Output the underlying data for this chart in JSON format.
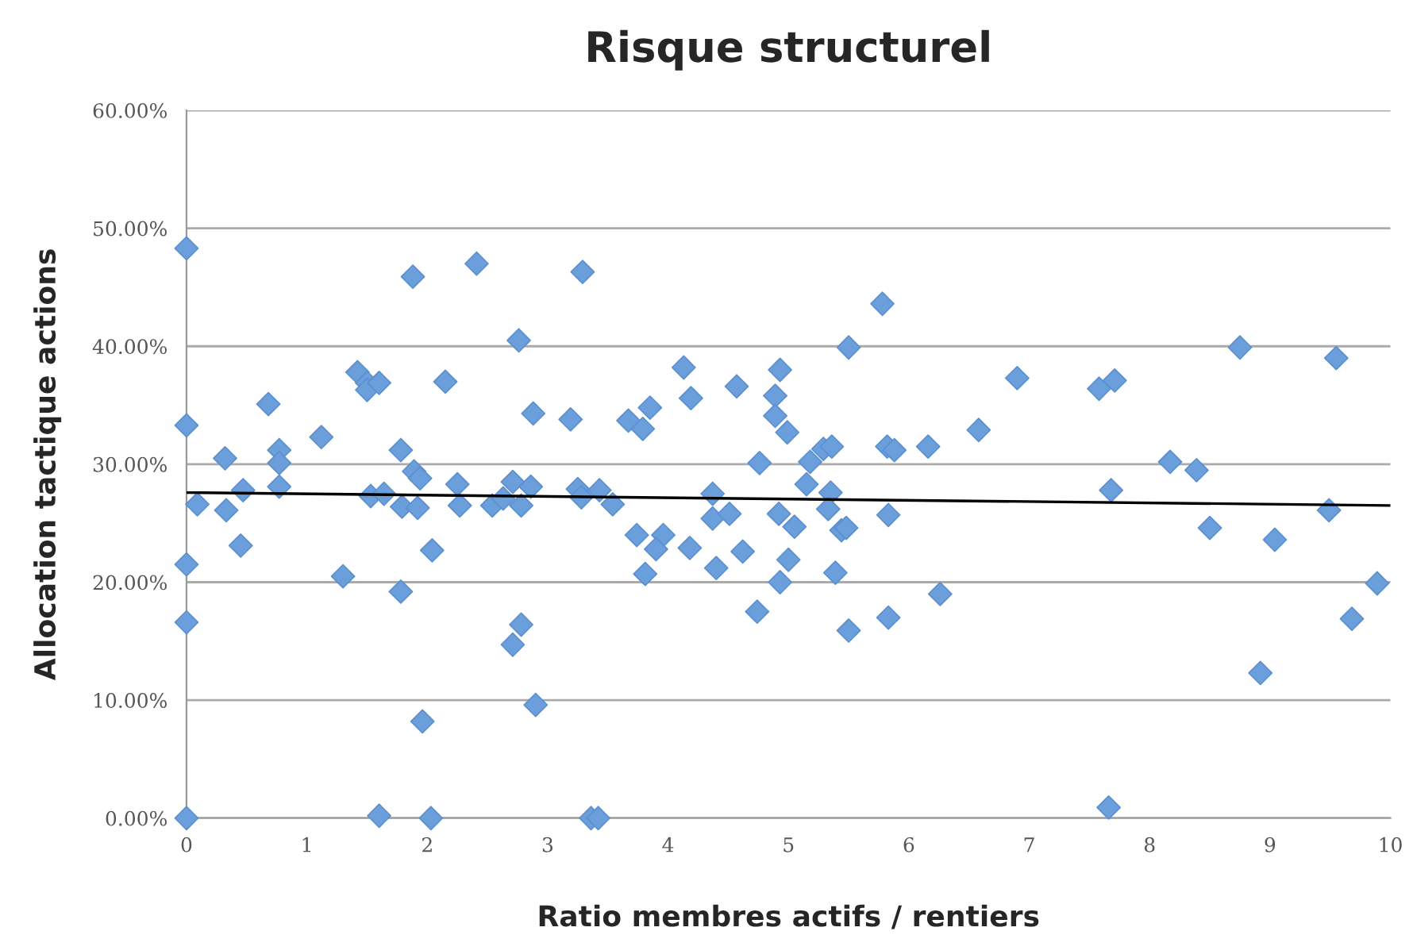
{
  "chart_data": {
    "type": "scatter",
    "title": "Risque structurel",
    "xlabel": "Ratio membres actifs / rentiers",
    "ylabel": "Allocation tactique actions",
    "xlim": [
      0,
      10
    ],
    "xticks": [
      0,
      1,
      2,
      3,
      4,
      5,
      6,
      7,
      8,
      9,
      10
    ],
    "ylim": [
      0,
      60
    ],
    "yticks": [
      {
        "value": 0,
        "label": "0.00%"
      },
      {
        "value": 10,
        "label": "10.00%"
      },
      {
        "value": 20,
        "label": "20.00%"
      },
      {
        "value": 30,
        "label": "30.00%"
      },
      {
        "value": 40,
        "label": "40.00%"
      },
      {
        "value": 50,
        "label": "50.00%"
      },
      {
        "value": 60,
        "label": "60.00%"
      }
    ],
    "grid": "y",
    "series": [
      {
        "marker": "diamond",
        "color": "#6a9fdc",
        "x": [
          0,
          0,
          0,
          0,
          0,
          0.09,
          0.32,
          0.33,
          0.45,
          0.47,
          0.68,
          0.77,
          0.77,
          0.77,
          1.12,
          1.3,
          1.42,
          1.5,
          1.5,
          1.6,
          1.53,
          1.64,
          1.6,
          1.78,
          1.79,
          1.78,
          1.88,
          1.89,
          1.94,
          1.92,
          1.96,
          2.04,
          2.03,
          2.15,
          2.25,
          2.27,
          2.41,
          2.54,
          2.63,
          2.71,
          2.71,
          2.76,
          2.78,
          2.78,
          2.86,
          2.88,
          2.9,
          3.19,
          3.29,
          3.25,
          3.28,
          3.43,
          3.54,
          3.36,
          3.42,
          3.67,
          3.79,
          3.85,
          3.74,
          3.96,
          3.9,
          3.81,
          4.13,
          4.19,
          4.18,
          4.37,
          4.37,
          4.51,
          4.4,
          4.57,
          4.62,
          4.74,
          4.76,
          4.93,
          4.89,
          4.89,
          4.99,
          4.92,
          5.05,
          5.0,
          4.93,
          5.18,
          5.15,
          5.29,
          5.36,
          5.35,
          5.33,
          5.44,
          5.48,
          5.39,
          5.5,
          5.5,
          5.78,
          5.82,
          5.88,
          5.83,
          5.83,
          6.16,
          6.26,
          6.58,
          6.9,
          7.58,
          7.71,
          7.68,
          7.66,
          8.17,
          8.39,
          8.5,
          8.75,
          8.92,
          9.04,
          9.55,
          9.49,
          9.68,
          9.89
        ],
        "values": [
          48.3,
          33.3,
          21.5,
          16.6,
          0,
          26.6,
          30.5,
          26.1,
          23.1,
          27.8,
          35.1,
          31.2,
          30.1,
          28.1,
          32.3,
          20.5,
          37.8,
          36.9,
          36.3,
          36.9,
          27.3,
          27.5,
          0.2,
          31.2,
          26.4,
          19.2,
          45.9,
          29.4,
          28.8,
          26.3,
          8.2,
          22.7,
          0,
          37.0,
          28.3,
          26.5,
          47.0,
          26.5,
          27.1,
          28.5,
          14.7,
          40.5,
          26.5,
          16.4,
          28.1,
          34.3,
          9.6,
          33.8,
          46.3,
          27.9,
          27.2,
          27.8,
          26.6,
          0,
          0,
          33.7,
          33.0,
          34.8,
          24.0,
          24.0,
          22.8,
          20.7,
          38.2,
          35.6,
          22.9,
          27.5,
          25.4,
          25.8,
          21.2,
          36.6,
          22.6,
          17.5,
          30.1,
          38.0,
          35.8,
          34.1,
          32.7,
          25.8,
          24.7,
          21.9,
          20.0,
          30.2,
          28.3,
          31.3,
          31.5,
          27.6,
          26.2,
          24.4,
          24.6,
          20.8,
          15.9,
          39.9,
          43.6,
          31.5,
          31.2,
          25.7,
          17.0,
          31.5,
          19.0,
          32.9,
          37.3,
          36.4,
          37.1,
          27.8,
          0.9,
          30.2,
          29.5,
          24.6,
          39.9,
          12.3,
          23.6,
          39.0,
          26.1,
          16.9,
          19.9
        ]
      },
      {
        "type": "line",
        "color": "#000000",
        "x": [
          0,
          10
        ],
        "values": [
          27.6,
          26.5
        ]
      }
    ]
  }
}
